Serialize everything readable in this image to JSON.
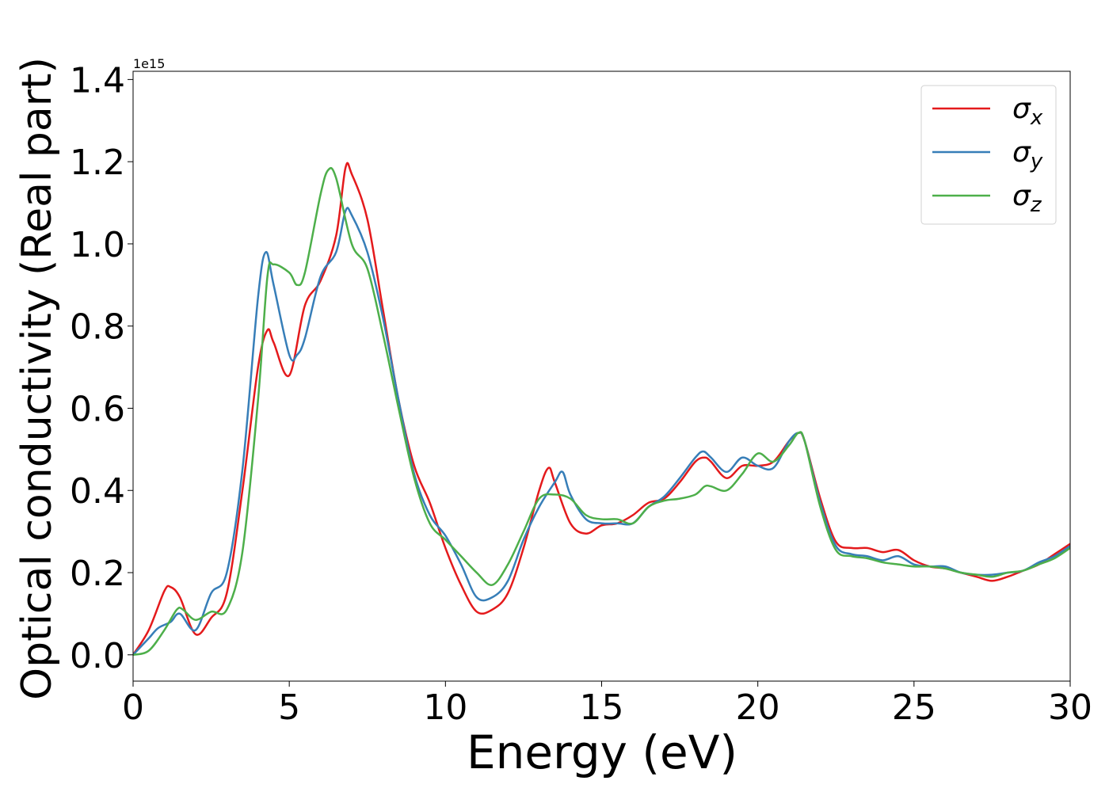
{
  "chart_data": {
    "type": "line",
    "xlabel": "Energy (eV)",
    "ylabel": "Optical conductivity (Real part)",
    "y_offset_label": "1e15",
    "xlim": [
      0,
      30
    ],
    "xticks": [
      0,
      5,
      10,
      15,
      20,
      25,
      30
    ],
    "ylim": [
      -0.064,
      1.42
    ],
    "yticks": [
      {
        "value": 0,
        "label": "0.0"
      },
      0.2,
      0.4,
      0.6,
      0.8,
      {
        "value": 1,
        "label": "1.0"
      },
      1.2,
      1.4
    ],
    "grid": false,
    "legend": "upper right",
    "series": [
      {
        "name": "σx",
        "color": "#e41a1c",
        "x": [
          0,
          0.5,
          1.0,
          1.2,
          1.5,
          2.0,
          2.5,
          3.0,
          3.5,
          4.0,
          4.3,
          4.5,
          5.0,
          5.5,
          6.0,
          6.5,
          6.8,
          7.0,
          7.5,
          8.0,
          8.5,
          9.0,
          9.5,
          10.0,
          10.5,
          11.0,
          11.5,
          12.0,
          12.5,
          13.0,
          13.3,
          13.5,
          14.0,
          14.5,
          15.0,
          15.5,
          16.0,
          16.5,
          17.0,
          17.5,
          18.0,
          18.3,
          18.5,
          19.0,
          19.5,
          20.0,
          20.5,
          21.0,
          21.3,
          21.5,
          22.0,
          22.5,
          23.0,
          23.5,
          24.0,
          24.5,
          25.0,
          25.5,
          26.0,
          26.5,
          27.0,
          27.5,
          28.0,
          28.5,
          29.0,
          29.5,
          30.0
        ],
        "values": [
          0,
          0.06,
          0.155,
          0.165,
          0.14,
          0.05,
          0.09,
          0.15,
          0.4,
          0.7,
          0.79,
          0.76,
          0.68,
          0.85,
          0.91,
          1.02,
          1.185,
          1.17,
          1.06,
          0.84,
          0.62,
          0.46,
          0.37,
          0.26,
          0.17,
          0.105,
          0.11,
          0.15,
          0.26,
          0.4,
          0.455,
          0.42,
          0.32,
          0.295,
          0.315,
          0.32,
          0.34,
          0.37,
          0.38,
          0.42,
          0.47,
          0.48,
          0.47,
          0.43,
          0.46,
          0.46,
          0.47,
          0.52,
          0.54,
          0.52,
          0.38,
          0.275,
          0.26,
          0.26,
          0.25,
          0.255,
          0.23,
          0.215,
          0.21,
          0.2,
          0.19,
          0.18,
          0.19,
          0.205,
          0.22,
          0.245,
          0.27
        ]
      },
      {
        "name": "σy",
        "color": "#377eb8",
        "x": [
          0,
          0.5,
          0.8,
          1.2,
          1.5,
          2.0,
          2.5,
          3.0,
          3.5,
          4.0,
          4.25,
          4.5,
          5.0,
          5.25,
          5.5,
          6.0,
          6.5,
          6.8,
          7.0,
          7.5,
          8.0,
          8.5,
          9.0,
          9.5,
          10.0,
          10.5,
          11.0,
          11.5,
          12.0,
          12.5,
          13.0,
          13.5,
          13.75,
          14.0,
          14.5,
          15.0,
          15.5,
          16.0,
          16.5,
          17.0,
          17.5,
          18.0,
          18.25,
          18.5,
          19.0,
          19.5,
          20.0,
          20.5,
          21.0,
          21.3,
          21.5,
          22.0,
          22.5,
          23.0,
          23.5,
          24.0,
          24.5,
          25.0,
          25.5,
          26.0,
          26.5,
          27.0,
          27.5,
          28.0,
          28.5,
          29.0,
          29.5,
          30.0
        ],
        "values": [
          0,
          0.04,
          0.065,
          0.08,
          0.1,
          0.06,
          0.15,
          0.2,
          0.45,
          0.87,
          0.98,
          0.9,
          0.73,
          0.73,
          0.77,
          0.92,
          0.98,
          1.08,
          1.07,
          0.98,
          0.82,
          0.62,
          0.44,
          0.34,
          0.29,
          0.22,
          0.14,
          0.14,
          0.18,
          0.28,
          0.36,
          0.42,
          0.445,
          0.39,
          0.33,
          0.32,
          0.32,
          0.32,
          0.36,
          0.385,
          0.43,
          0.48,
          0.495,
          0.48,
          0.445,
          0.48,
          0.46,
          0.455,
          0.52,
          0.54,
          0.52,
          0.37,
          0.265,
          0.245,
          0.24,
          0.23,
          0.24,
          0.22,
          0.215,
          0.215,
          0.2,
          0.195,
          0.195,
          0.2,
          0.205,
          0.225,
          0.24,
          0.265
        ]
      },
      {
        "name": "σz",
        "color": "#4daf4a",
        "x": [
          0,
          0.5,
          1.0,
          1.4,
          1.6,
          2.0,
          2.5,
          3.0,
          3.5,
          4.0,
          4.3,
          4.5,
          5.0,
          5.25,
          5.5,
          6.0,
          6.25,
          6.5,
          7.0,
          7.5,
          8.0,
          8.5,
          9.0,
          9.5,
          10.0,
          10.5,
          11.0,
          11.5,
          12.0,
          12.5,
          13.0,
          13.5,
          14.0,
          14.5,
          15.0,
          15.5,
          16.0,
          16.5,
          17.0,
          17.5,
          18.0,
          18.3,
          18.5,
          19.0,
          19.5,
          20.0,
          20.5,
          21.0,
          21.3,
          21.5,
          22.0,
          22.5,
          23.0,
          23.5,
          24.0,
          24.5,
          25.0,
          25.5,
          26.0,
          26.5,
          27.0,
          27.5,
          28.0,
          28.5,
          29.0,
          29.5,
          30.0
        ],
        "values": [
          0,
          0.01,
          0.06,
          0.11,
          0.11,
          0.085,
          0.105,
          0.11,
          0.25,
          0.62,
          0.92,
          0.95,
          0.93,
          0.9,
          0.93,
          1.12,
          1.18,
          1.16,
          1.0,
          0.94,
          0.78,
          0.6,
          0.43,
          0.32,
          0.28,
          0.24,
          0.2,
          0.17,
          0.22,
          0.3,
          0.38,
          0.39,
          0.38,
          0.34,
          0.33,
          0.33,
          0.32,
          0.36,
          0.375,
          0.38,
          0.39,
          0.41,
          0.41,
          0.4,
          0.44,
          0.49,
          0.47,
          0.51,
          0.54,
          0.52,
          0.36,
          0.255,
          0.24,
          0.235,
          0.225,
          0.22,
          0.215,
          0.215,
          0.21,
          0.2,
          0.195,
          0.19,
          0.2,
          0.205,
          0.22,
          0.235,
          0.26
        ]
      }
    ]
  }
}
